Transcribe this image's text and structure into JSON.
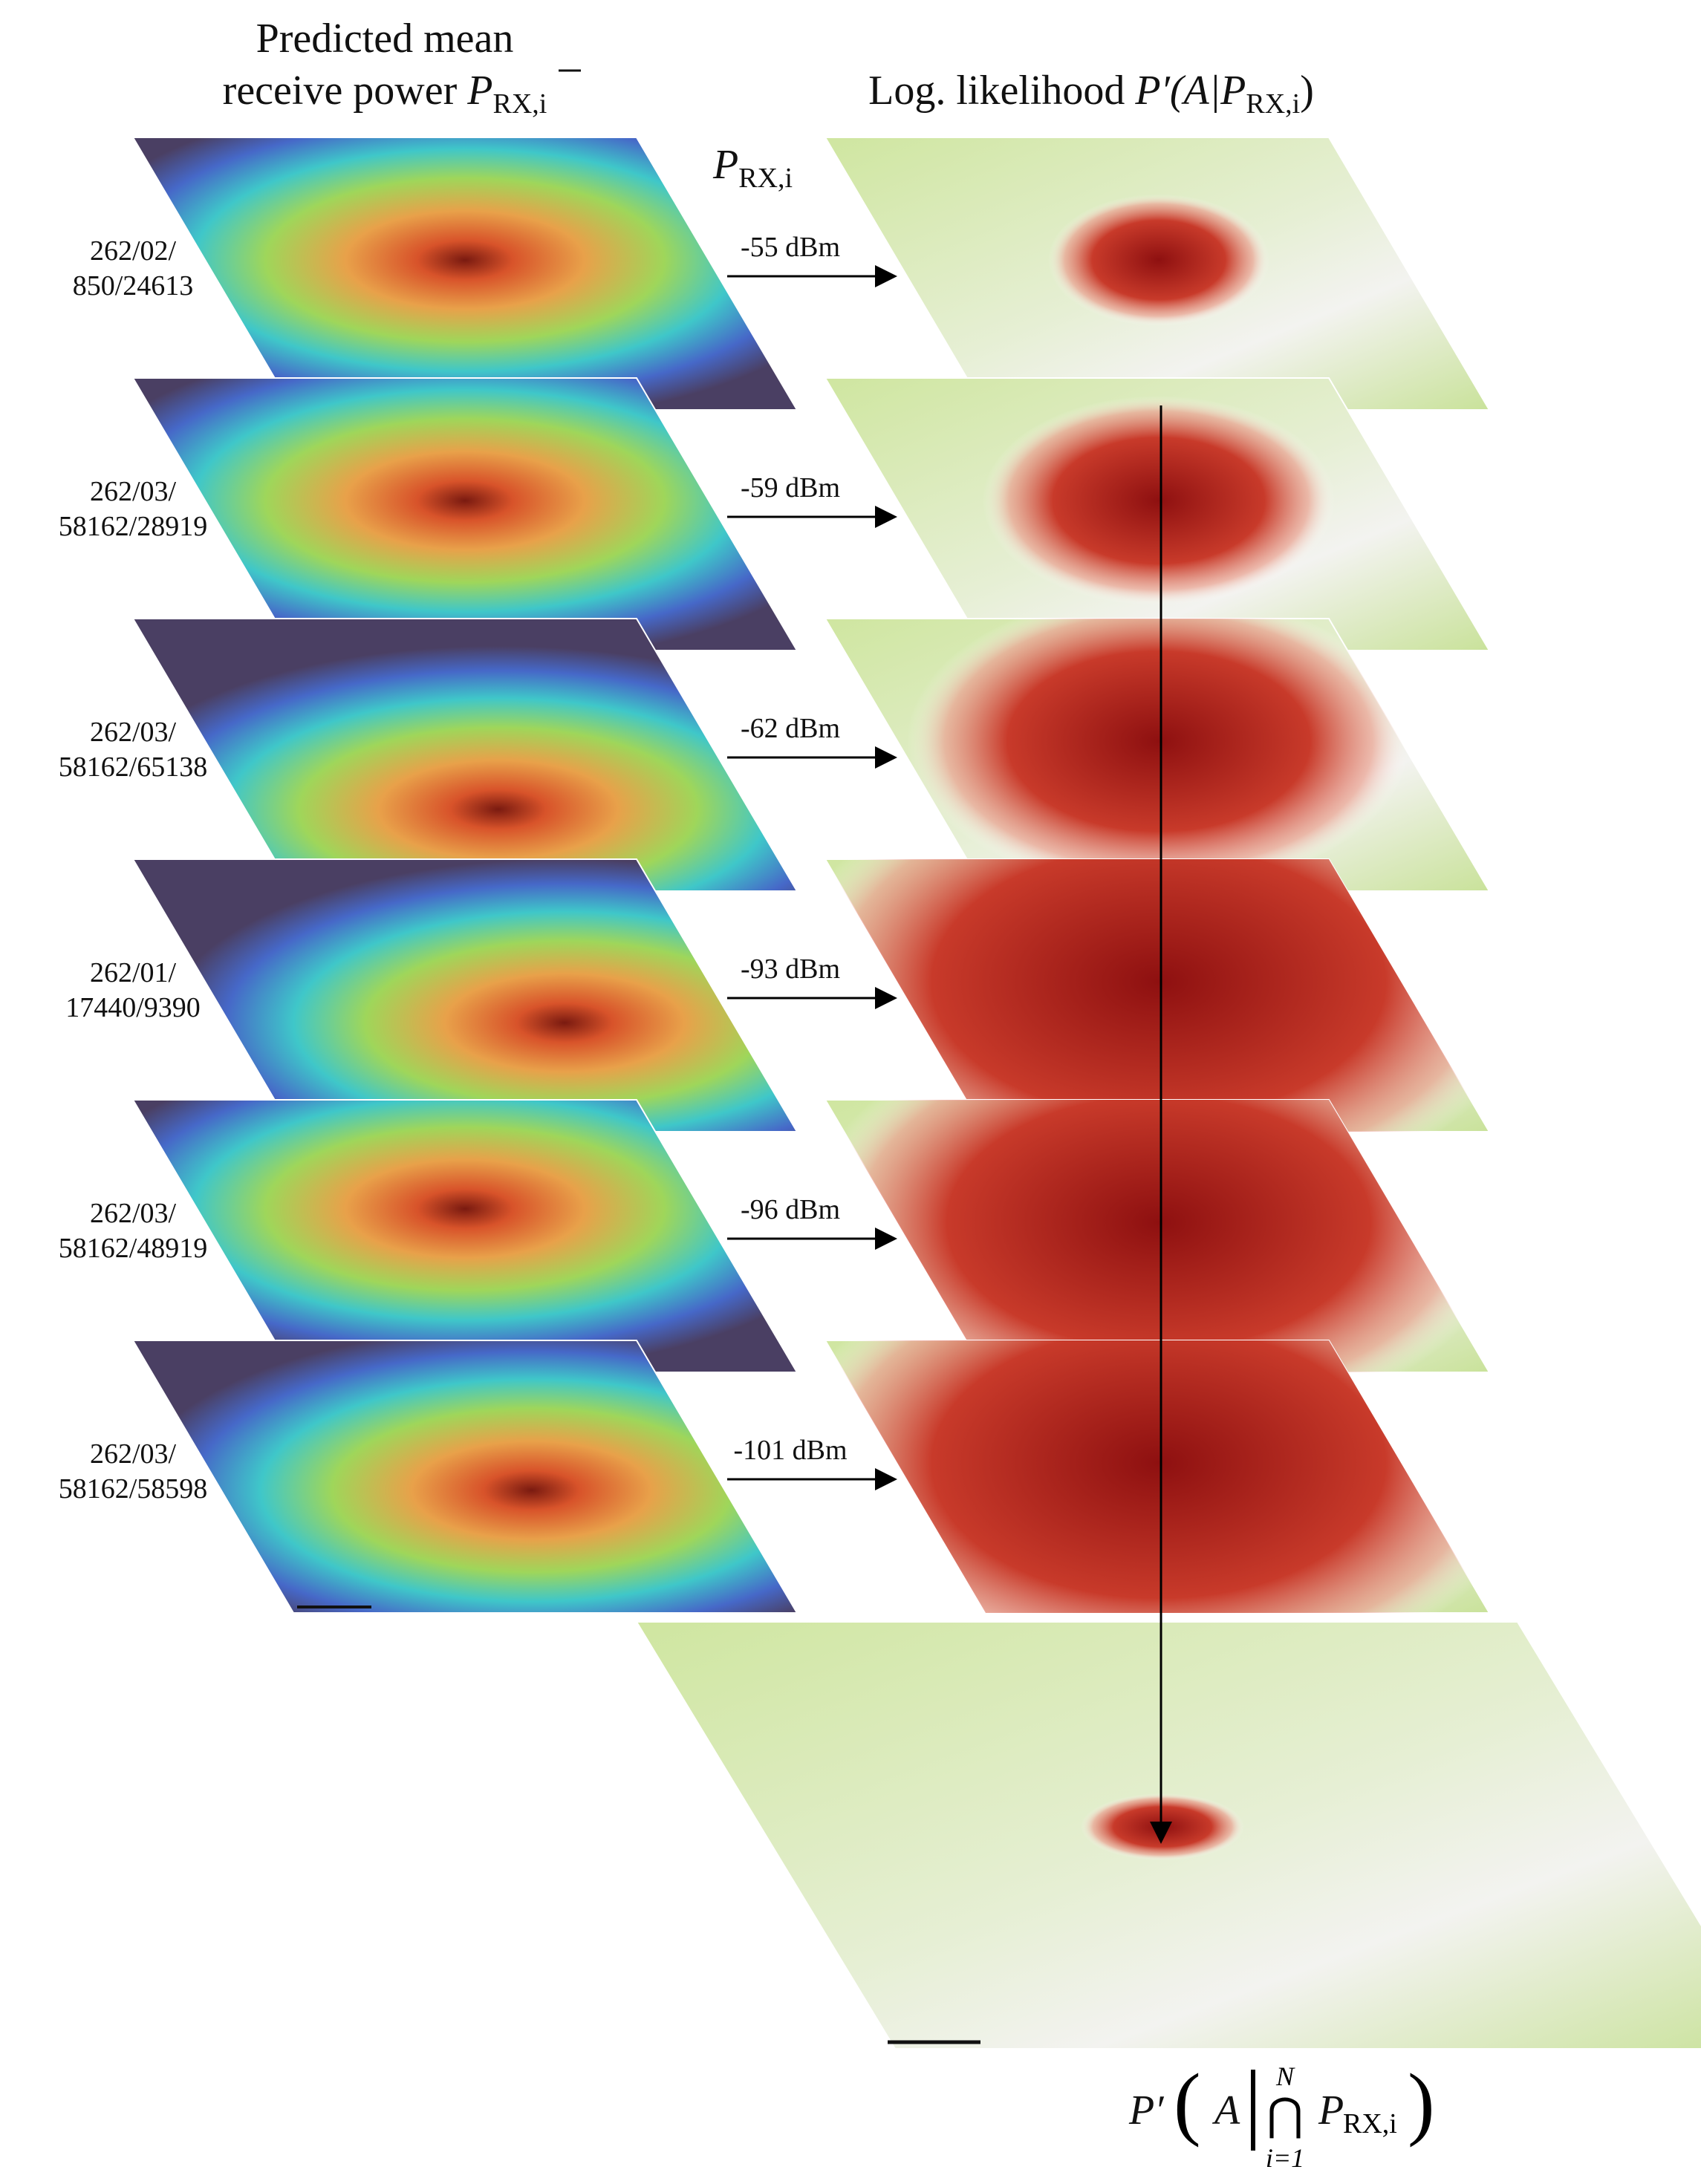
{
  "header": {
    "left_line1": "Predicted mean",
    "left_line2": "receive power",
    "left_symbol": "P",
    "left_sub": "RX,i",
    "right_text": "Log. likelihood",
    "right_symbol": "P′(A|P",
    "right_sub": "RX,i",
    "right_close": ")",
    "arrow_symbol": "P",
    "arrow_sub": "RX,i"
  },
  "rows": [
    {
      "id_line1": "262/02/",
      "id_line2": "850/24613",
      "power": "-55 dBm"
    },
    {
      "id_line1": "262/03/",
      "id_line2": "58162/28919",
      "power": "-59 dBm"
    },
    {
      "id_line1": "262/03/",
      "id_line2": "58162/65138",
      "power": "-62 dBm"
    },
    {
      "id_line1": "262/01/",
      "id_line2": "17440/9390",
      "power": "-93 dBm"
    },
    {
      "id_line1": "262/03/",
      "id_line2": "58162/48919",
      "power": "-96 dBm"
    },
    {
      "id_line1": "262/03/",
      "id_line2": "58162/58598",
      "power": "-101 dBm"
    }
  ],
  "result": {
    "symbol": "P′",
    "open": "(",
    "given": "A",
    "bar": "|",
    "upper": "N",
    "cap": "⋂",
    "lower": "i=1",
    "var": "P",
    "sub": "RX,i",
    "close": ")"
  }
}
